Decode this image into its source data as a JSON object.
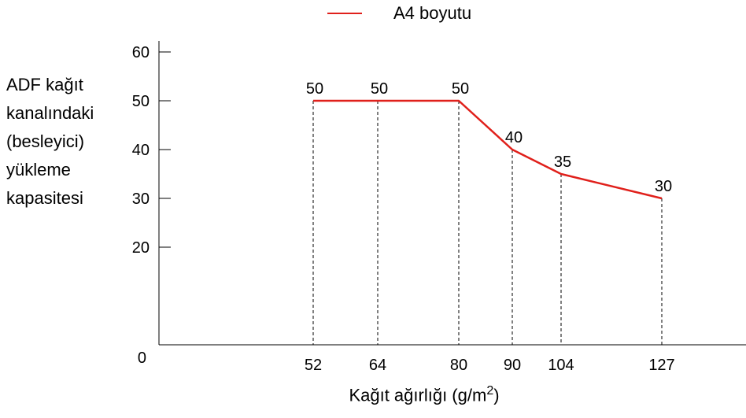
{
  "colors": {
    "series": "#e0201b",
    "axis": "#000000",
    "guide": "#000000"
  },
  "chart_data": {
    "type": "line",
    "title": "",
    "ylabel_lines": [
      "ADF kağıt",
      "kanalındaki",
      "(besleyici)",
      "yükleme",
      "kapasitesi"
    ],
    "xlabel": {
      "main": "Kağıt ağırlığı (g/m",
      "sup": "2",
      "end": ")"
    },
    "legend": "top-center",
    "grid": false,
    "ylim": [
      0,
      60
    ],
    "yticks": [
      0,
      20,
      30,
      40,
      50,
      60
    ],
    "xticks": [
      52,
      64,
      80,
      90,
      104,
      127
    ],
    "series": [
      {
        "name": "A4 boyutu",
        "x": [
          52,
          64,
          80,
          90,
          104,
          127
        ],
        "values": [
          50,
          50,
          50,
          40,
          35,
          30
        ],
        "labels": [
          "50",
          "50",
          "50",
          "40",
          "35",
          "30"
        ]
      }
    ]
  }
}
